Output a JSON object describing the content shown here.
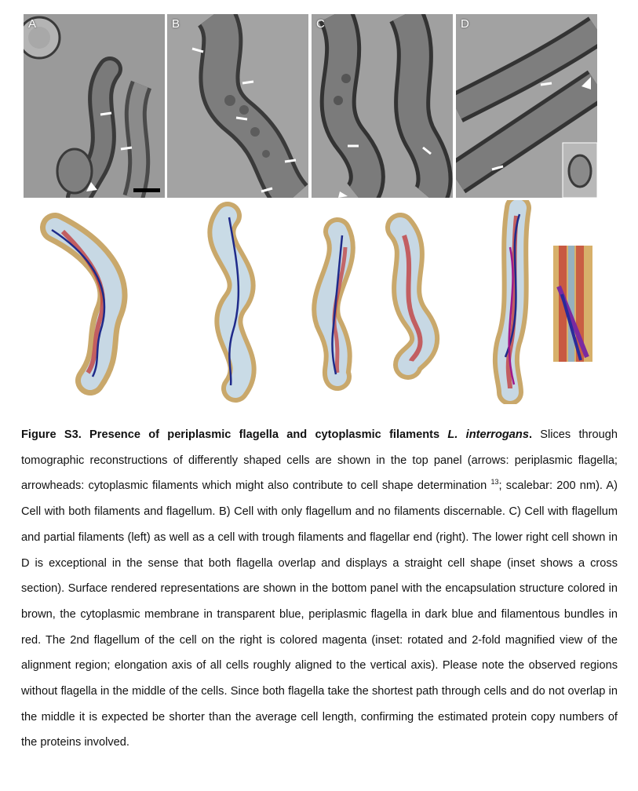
{
  "panels": [
    {
      "label": "A"
    },
    {
      "label": "B"
    },
    {
      "label": "C"
    },
    {
      "label": "D"
    }
  ],
  "caption": {
    "title_bold": "Figure S3. Presence of periplasmic flagella and cytoplasmic filaments ",
    "title_species": "L. interrogans",
    "title_end": ".",
    "body_part1": " Slices through tomographic reconstructions of differently shaped cells are shown in the top panel (arrows: periplasmic flagella; arrowheads: cytoplasmic filaments which might also contribute to cell shape determination ",
    "ref": "13",
    "body_part2": "; scalebar: 200 nm). A) Cell with both filaments and flagellum. B) Cell with only flagellum and no filaments discernable. C) Cell with flagellum and partial filaments (left) as well as a cell with trough filaments and flagellar end (right). The lower right cell shown in D is exceptional in the sense that both flagella overlap and displays a straight cell shape (inset shows a cross section). Surface rendered representations are shown in the bottom panel with the encapsulation structure colored in brown, the cytoplasmic membrane in transparent blue, periplasmic flagella in dark blue and filamentous bundles in red. The 2nd flagellum of the cell on the right is colored magenta (inset: rotated and 2-fold magnified view of the alignment region; elongation axis of all cells roughly aligned to the vertical axis). Please note the observed regions without flagella in the middle of the cells. Since both flagella take the shortest path through cells and do not overlap in the middle it is expected be shorter than the average cell length, confirming the estimated protein copy numbers of the proteins involved."
  }
}
